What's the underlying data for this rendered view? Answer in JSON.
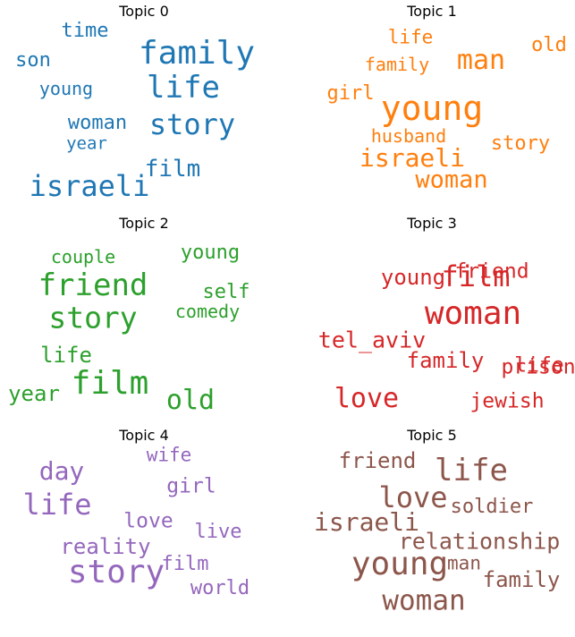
{
  "chart_data": {
    "type": "wordcloud",
    "topics": [
      {
        "title": "Topic 0",
        "color": "#1f77b4",
        "words": [
          {
            "text": "family",
            "size": 36
          },
          {
            "text": "life",
            "size": 34
          },
          {
            "text": "story",
            "size": 32
          },
          {
            "text": "israeli",
            "size": 32
          },
          {
            "text": "film",
            "size": 26
          },
          {
            "text": "time",
            "size": 22
          },
          {
            "text": "son",
            "size": 22
          },
          {
            "text": "woman",
            "size": 22
          },
          {
            "text": "young",
            "size": 20
          },
          {
            "text": "year",
            "size": 19
          }
        ]
      },
      {
        "title": "Topic 1",
        "color": "#ff7f0e",
        "words": [
          {
            "text": "young",
            "size": 38
          },
          {
            "text": "man",
            "size": 30
          },
          {
            "text": "israeli",
            "size": 28
          },
          {
            "text": "woman",
            "size": 27
          },
          {
            "text": "old",
            "size": 22
          },
          {
            "text": "story",
            "size": 22
          },
          {
            "text": "girl",
            "size": 22
          },
          {
            "text": "life",
            "size": 21
          },
          {
            "text": "family",
            "size": 20
          },
          {
            "text": "husband",
            "size": 20
          }
        ]
      },
      {
        "title": "Topic 2",
        "color": "#2ca02c",
        "words": [
          {
            "text": "film",
            "size": 36
          },
          {
            "text": "friend",
            "size": 34
          },
          {
            "text": "story",
            "size": 33
          },
          {
            "text": "old",
            "size": 30
          },
          {
            "text": "year",
            "size": 24
          },
          {
            "text": "life",
            "size": 24
          },
          {
            "text": "young",
            "size": 22
          },
          {
            "text": "self",
            "size": 22
          },
          {
            "text": "couple",
            "size": 20
          },
          {
            "text": "comedy",
            "size": 20
          }
        ]
      },
      {
        "title": "Topic 3",
        "color": "#d62728",
        "words": [
          {
            "text": "woman",
            "size": 36
          },
          {
            "text": "film",
            "size": 32
          },
          {
            "text": "love",
            "size": 30
          },
          {
            "text": "tel_aviv",
            "size": 25
          },
          {
            "text": "young",
            "size": 24
          },
          {
            "text": "family",
            "size": 24
          },
          {
            "text": "friend",
            "size": 23
          },
          {
            "text": "prison",
            "size": 23
          },
          {
            "text": "life",
            "size": 23
          },
          {
            "text": "jewish",
            "size": 23
          }
        ]
      },
      {
        "title": "Topic 4",
        "color": "#9467bd",
        "words": [
          {
            "text": "story",
            "size": 36
          },
          {
            "text": "life",
            "size": 32
          },
          {
            "text": "day",
            "size": 28
          },
          {
            "text": "reality",
            "size": 24
          },
          {
            "text": "girl",
            "size": 23
          },
          {
            "text": "love",
            "size": 23
          },
          {
            "text": "live",
            "size": 22
          },
          {
            "text": "world",
            "size": 22
          },
          {
            "text": "film",
            "size": 22
          },
          {
            "text": "wife",
            "size": 21
          }
        ]
      },
      {
        "title": "Topic 5",
        "color": "#8c564b",
        "words": [
          {
            "text": "young",
            "size": 36
          },
          {
            "text": "life",
            "size": 34
          },
          {
            "text": "love",
            "size": 32
          },
          {
            "text": "woman",
            "size": 31
          },
          {
            "text": "israeli",
            "size": 28
          },
          {
            "text": "relationship",
            "size": 25
          },
          {
            "text": "family",
            "size": 24
          },
          {
            "text": "friend",
            "size": 24
          },
          {
            "text": "soldier",
            "size": 22
          },
          {
            "text": "man",
            "size": 21
          }
        ]
      }
    ]
  }
}
